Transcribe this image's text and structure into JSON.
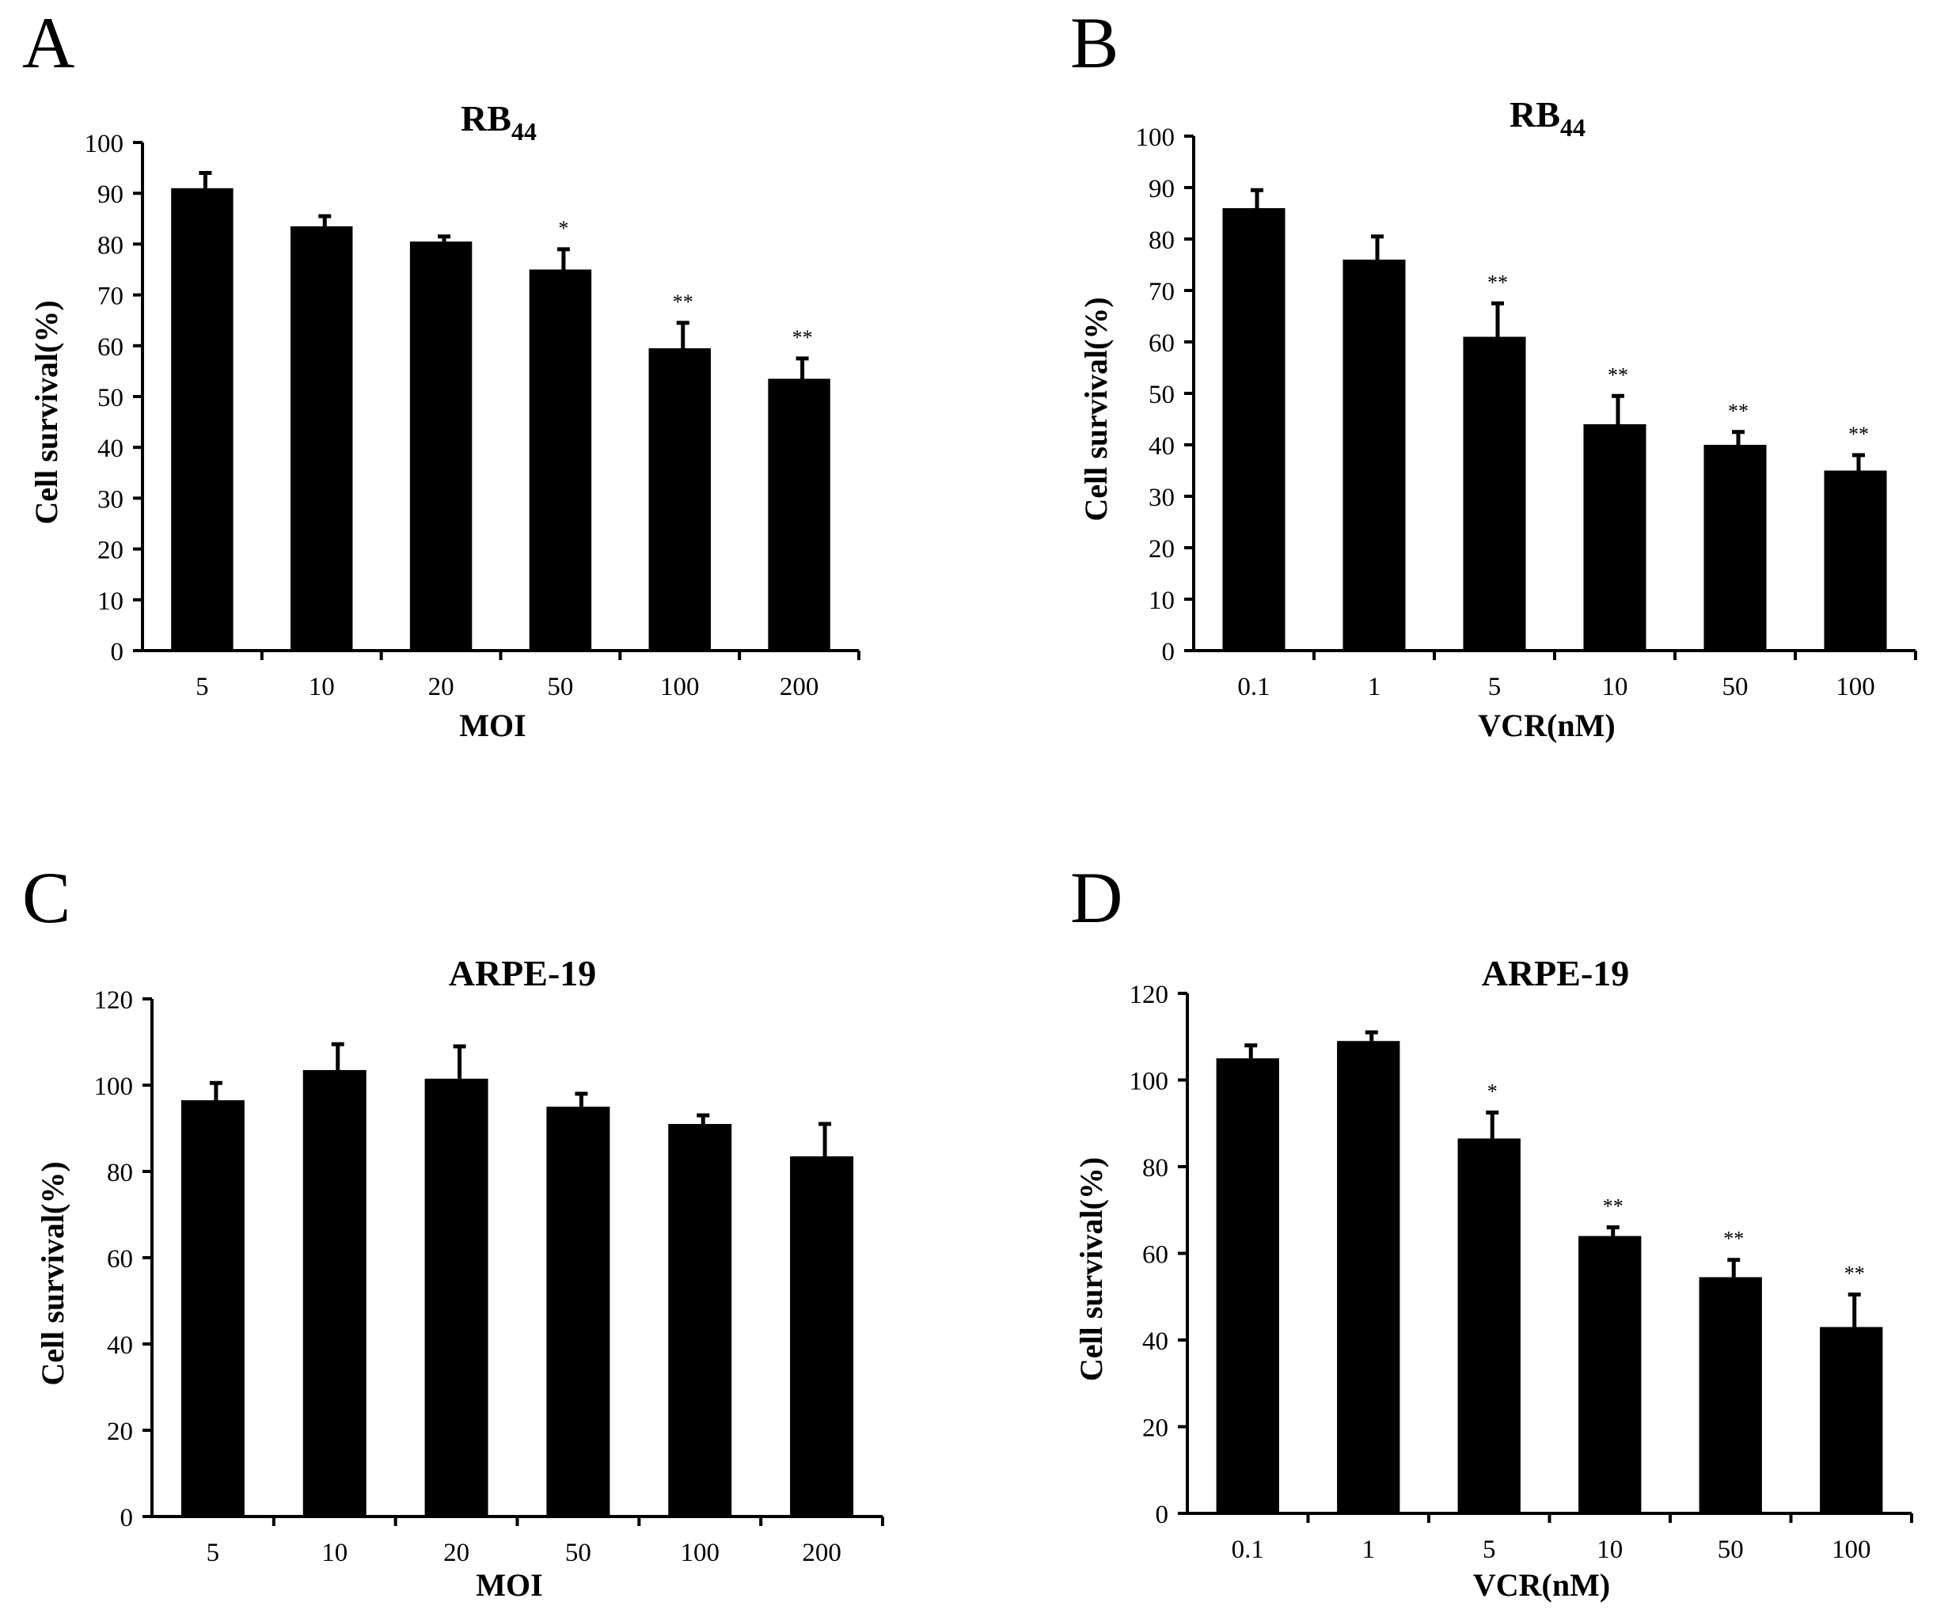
{
  "chart_data": [
    {
      "panel": "A",
      "type": "bar",
      "title": "RB",
      "title_subscript": "44",
      "xlabel": "MOI",
      "ylabel": "Cell survival(%)",
      "categories": [
        "5",
        "10",
        "20",
        "50",
        "100",
        "200"
      ],
      "values": [
        91,
        83.5,
        80.5,
        75,
        59.5,
        53.5
      ],
      "errors": [
        3,
        2,
        1,
        4,
        5,
        4
      ],
      "significance": [
        "",
        "",
        "",
        "*",
        "**",
        "**"
      ],
      "ylim": [
        0,
        100
      ],
      "yticks": [
        0,
        10,
        20,
        30,
        40,
        50,
        60,
        70,
        80,
        90,
        100
      ],
      "grid": false
    },
    {
      "panel": "B",
      "type": "bar",
      "title": "RB",
      "title_subscript": "44",
      "xlabel": "VCR(nM)",
      "ylabel": "Cell survival(%)",
      "categories": [
        "0.1",
        "1",
        "5",
        "10",
        "50",
        "100"
      ],
      "values": [
        86,
        76,
        61,
        44,
        40,
        35
      ],
      "errors": [
        3.5,
        4.5,
        6.5,
        5.5,
        2.5,
        3
      ],
      "significance": [
        "",
        "",
        "**",
        "**",
        "**",
        "**"
      ],
      "ylim": [
        0,
        100
      ],
      "yticks": [
        0,
        10,
        20,
        30,
        40,
        50,
        60,
        70,
        80,
        90,
        100
      ],
      "grid": false
    },
    {
      "panel": "C",
      "type": "bar",
      "title": "ARPE-19",
      "title_subscript": "",
      "xlabel": "MOI",
      "ylabel": "Cell survival(%)",
      "categories": [
        "5",
        "10",
        "20",
        "50",
        "100",
        "200"
      ],
      "values": [
        96.5,
        103.5,
        101.5,
        95,
        91,
        83.5
      ],
      "errors": [
        4,
        6,
        7.5,
        3,
        2,
        7.5
      ],
      "significance": [
        "",
        "",
        "",
        "",
        "",
        ""
      ],
      "ylim": [
        0,
        120
      ],
      "yticks": [
        0,
        20,
        40,
        60,
        80,
        100,
        120
      ],
      "grid": false
    },
    {
      "panel": "D",
      "type": "bar",
      "title": "ARPE-19",
      "title_subscript": "",
      "xlabel": "VCR(nM)",
      "ylabel": "Cell survival(%)",
      "categories": [
        "0.1",
        "1",
        "5",
        "10",
        "50",
        "100"
      ],
      "values": [
        105,
        109,
        86.5,
        64,
        54.5,
        43
      ],
      "errors": [
        3,
        2,
        6,
        2,
        4,
        7.5
      ],
      "significance": [
        "",
        "",
        "*",
        "**",
        "**",
        "**"
      ],
      "ylim": [
        0,
        120
      ],
      "yticks": [
        0,
        20,
        40,
        60,
        80,
        100,
        120
      ],
      "grid": false
    }
  ]
}
